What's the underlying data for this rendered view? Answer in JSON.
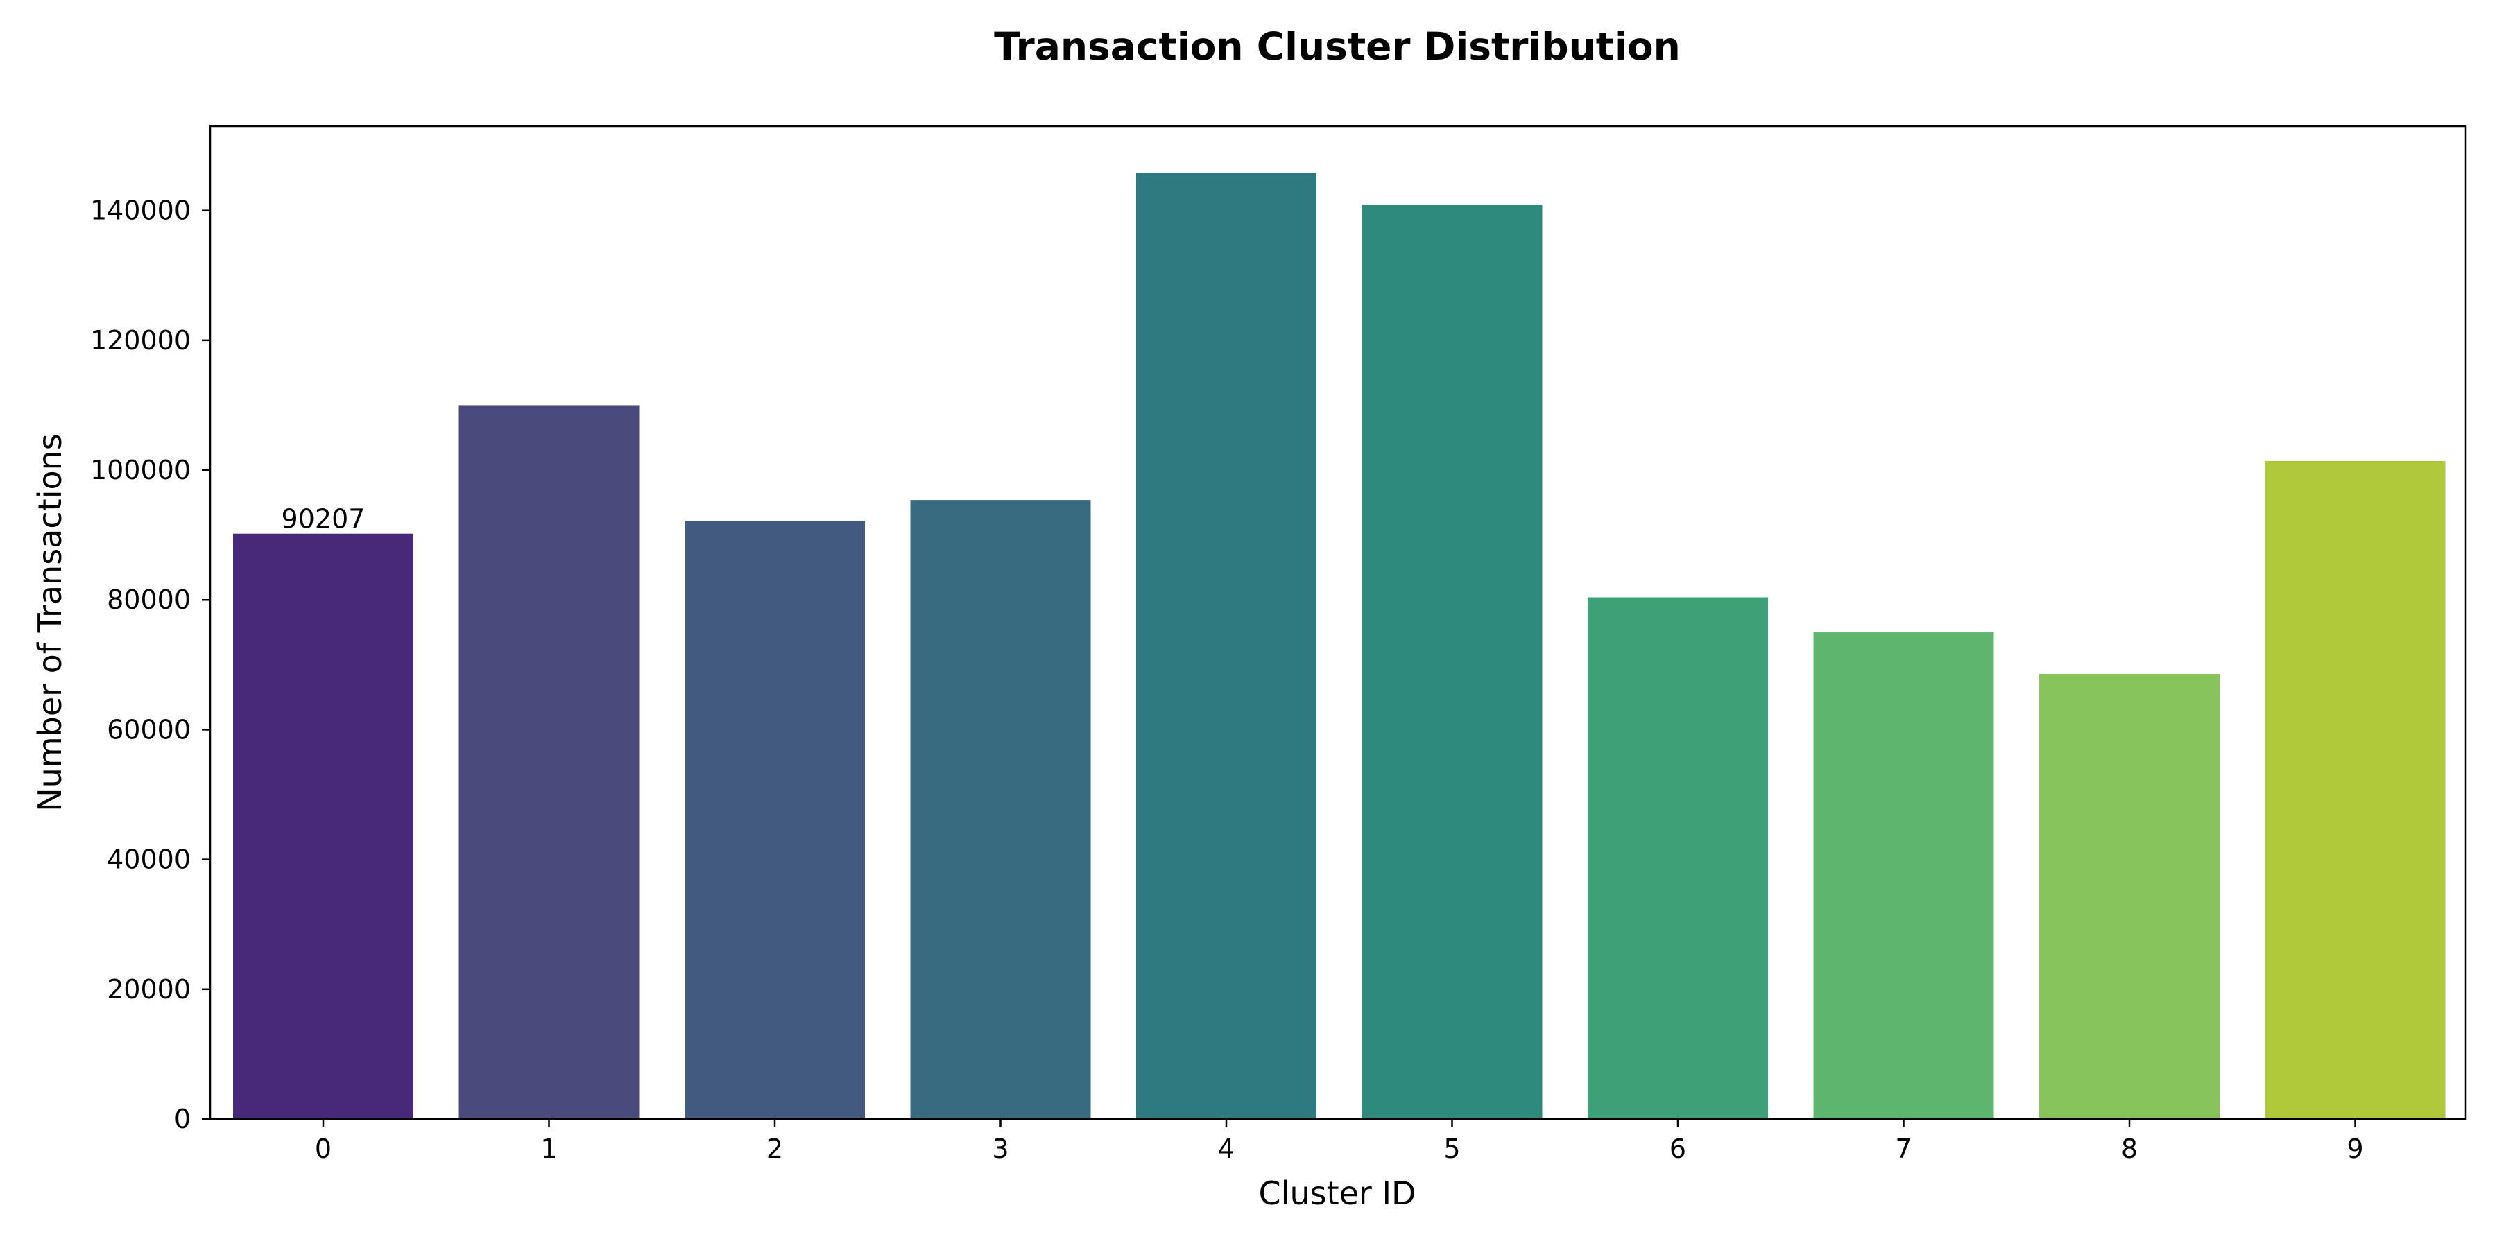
{
  "chart_data": {
    "type": "bar",
    "title": "Transaction Cluster Distribution",
    "xlabel": "Cluster ID",
    "ylabel": "Number of Transactions",
    "categories": [
      "0",
      "1",
      "2",
      "3",
      "4",
      "5",
      "6",
      "7",
      "8",
      "9"
    ],
    "values": [
      90207,
      110000,
      92200,
      95400,
      145800,
      140900,
      80400,
      75000,
      68600,
      101400
    ],
    "colors": [
      "#482878",
      "#4a4a7d",
      "#435a7f",
      "#396b80",
      "#2f7a80",
      "#2e8a7d",
      "#3da076",
      "#5db56e",
      "#88c45c",
      "#b0c93b"
    ],
    "data_labels": [
      {
        "category": "0",
        "text": "90207"
      }
    ],
    "ylim": [
      0,
      153000
    ],
    "yticks": [
      0,
      20000,
      40000,
      60000,
      80000,
      100000,
      120000,
      140000
    ],
    "grid": false,
    "legend": "none"
  }
}
